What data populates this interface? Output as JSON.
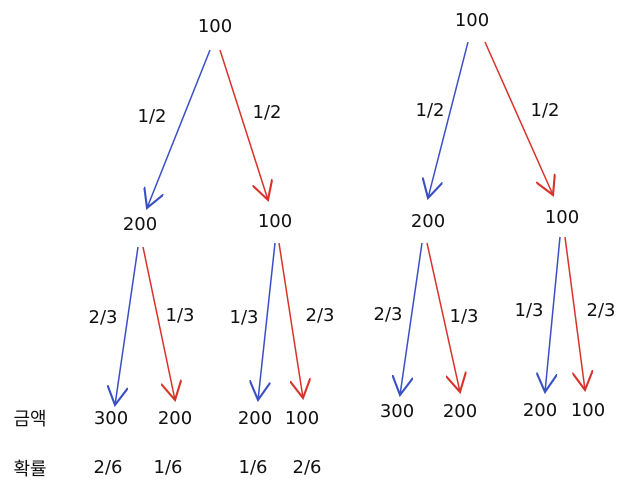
{
  "row_labels": {
    "amount": "금액",
    "probability": "확률"
  },
  "trees": [
    {
      "root": "100",
      "branches": [
        {
          "edge_label": "1/2",
          "node": "200",
          "children": [
            {
              "edge_label": "2/3",
              "node": "300",
              "probability": "2/6"
            },
            {
              "edge_label": "1/3",
              "node": "200",
              "probability": "1/6"
            }
          ]
        },
        {
          "edge_label": "1/2",
          "node": "100",
          "children": [
            {
              "edge_label": "1/3",
              "node": "200",
              "probability": "1/6"
            },
            {
              "edge_label": "2/3",
              "node": "100",
              "probability": "2/6"
            }
          ]
        }
      ]
    },
    {
      "root": "100",
      "branches": [
        {
          "edge_label": "1/2",
          "node": "200",
          "children": [
            {
              "edge_label": "2/3",
              "node": "300"
            },
            {
              "edge_label": "1/3",
              "node": "200"
            }
          ]
        },
        {
          "edge_label": "1/2",
          "node": "100",
          "children": [
            {
              "edge_label": "1/3",
              "node": "200"
            },
            {
              "edge_label": "2/3",
              "node": "100"
            }
          ]
        }
      ]
    }
  ]
}
